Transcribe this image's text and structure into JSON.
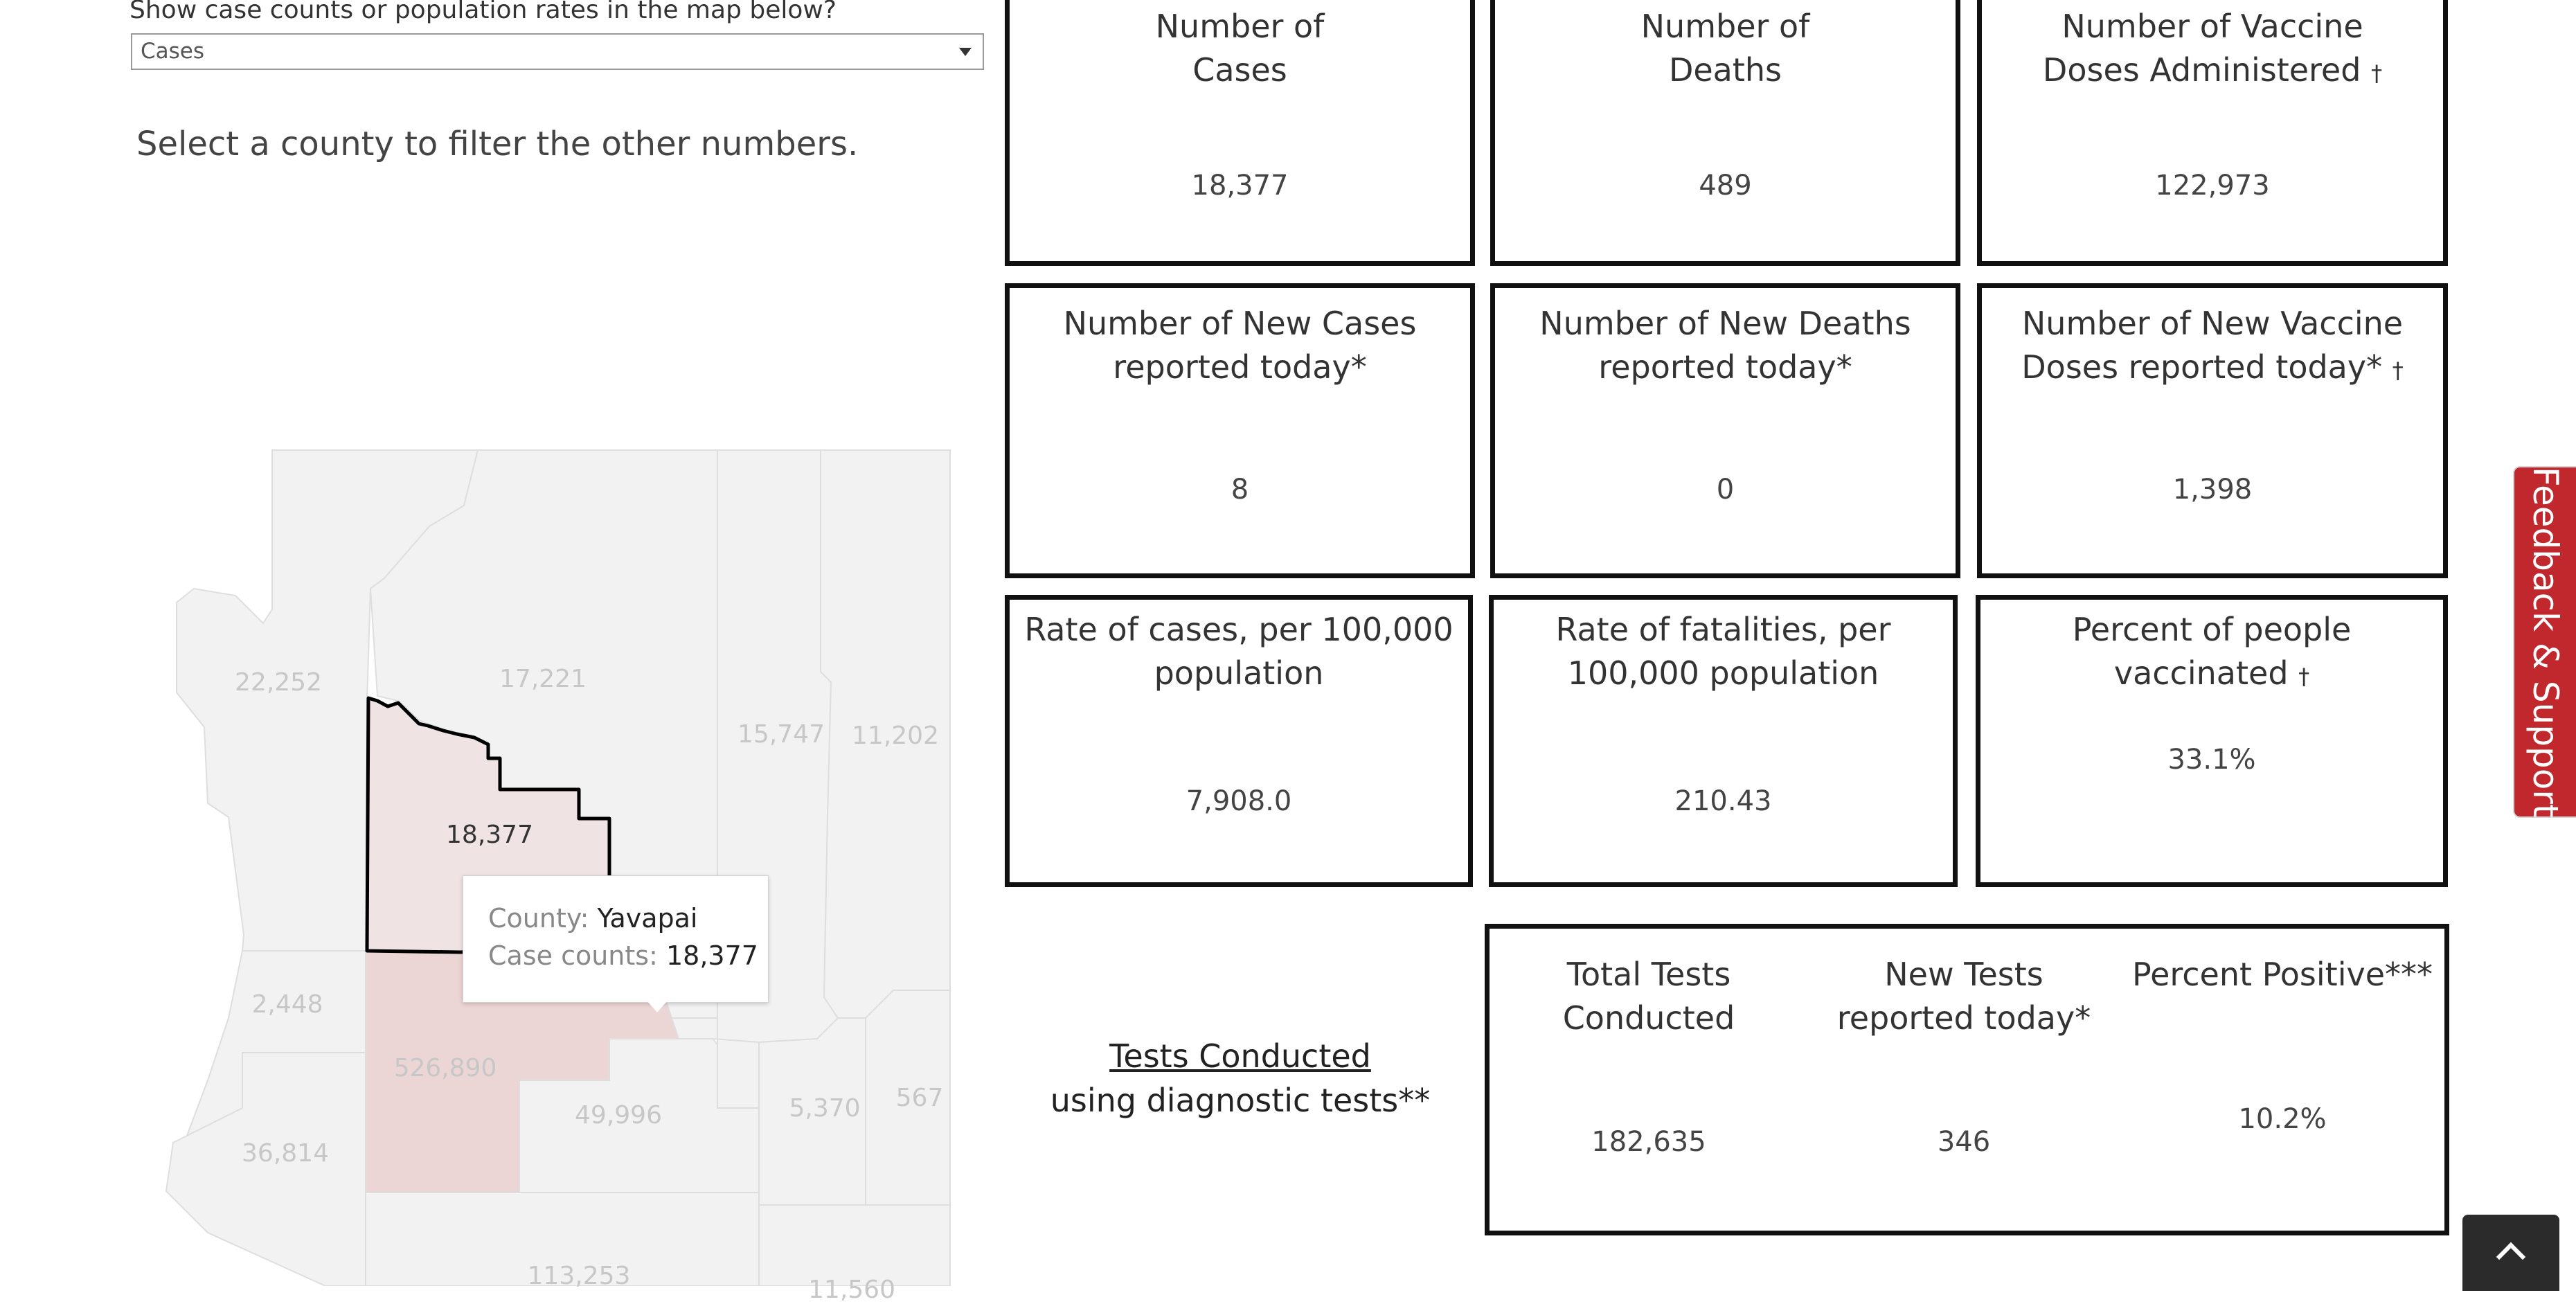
{
  "control": {
    "label": "Show case counts or population rates in the map below?",
    "selected": "Cases"
  },
  "hint": "Select a county to filter the other numbers.",
  "map": {
    "county_labels": [
      {
        "value": "22,252"
      },
      {
        "value": "17,221"
      },
      {
        "value": "15,747"
      },
      {
        "value": "11,202"
      },
      {
        "value": "18,377"
      },
      {
        "value": "2,448"
      },
      {
        "value": "526,890"
      },
      {
        "value": "49,996"
      },
      {
        "value": "5,370"
      },
      {
        "value": "567"
      },
      {
        "value": "36,814"
      },
      {
        "value": "113,253"
      },
      {
        "value": "11,560"
      }
    ],
    "colors": {
      "county_fill": "#f3f2f2",
      "county_border": "#dedede",
      "highlight_fill": "#efe3e3",
      "maricopa_fill": "#ecd5d5",
      "selected_border": "#000000"
    }
  },
  "tooltip": {
    "county_label": "County:",
    "county_value": "Yavapai",
    "counts_label": "Case counts:",
    "counts_value": "18,377"
  },
  "cards": {
    "cases": {
      "title": "Number of\nCases",
      "value": "18,377"
    },
    "deaths": {
      "title": "Number of\nDeaths",
      "value": "489"
    },
    "doses": {
      "title_line1": "Number of Vaccine",
      "title_line2": "Doses Administered",
      "dagger": "†",
      "value": "122,973"
    },
    "new_cases": {
      "title": "Number of New Cases\nreported today*",
      "value": "8"
    },
    "new_deaths": {
      "title": "Number of New Deaths\nreported today*",
      "value": "0"
    },
    "new_doses": {
      "title_line1": "Number of New Vaccine",
      "title_line2": "Doses reported today*",
      "dagger": "†",
      "value": "1,398"
    },
    "case_rate": {
      "title": "Rate of cases, per 100,000\npopulation",
      "value": "7,908.0"
    },
    "fatality_rate": {
      "title": "Rate of fatalities, per\n100,000 population",
      "value": "210.43"
    },
    "vaccinated": {
      "title": "Percent of people vaccinated",
      "dagger": "†",
      "value": "33.1%"
    }
  },
  "tests": {
    "heading": "Tests Conducted",
    "subheading": "using diagnostic tests**",
    "total": {
      "title": "Total Tests\nConducted",
      "value": "182,635"
    },
    "new": {
      "title": "New Tests\nreported today*",
      "value": "346"
    },
    "positive": {
      "title": "Percent Positive***",
      "value": "10.2%"
    }
  },
  "feedback": "Feedback & Support",
  "icons": {
    "back_to_top": "chevron-up-icon",
    "dropdown": "chevron-down-icon"
  }
}
